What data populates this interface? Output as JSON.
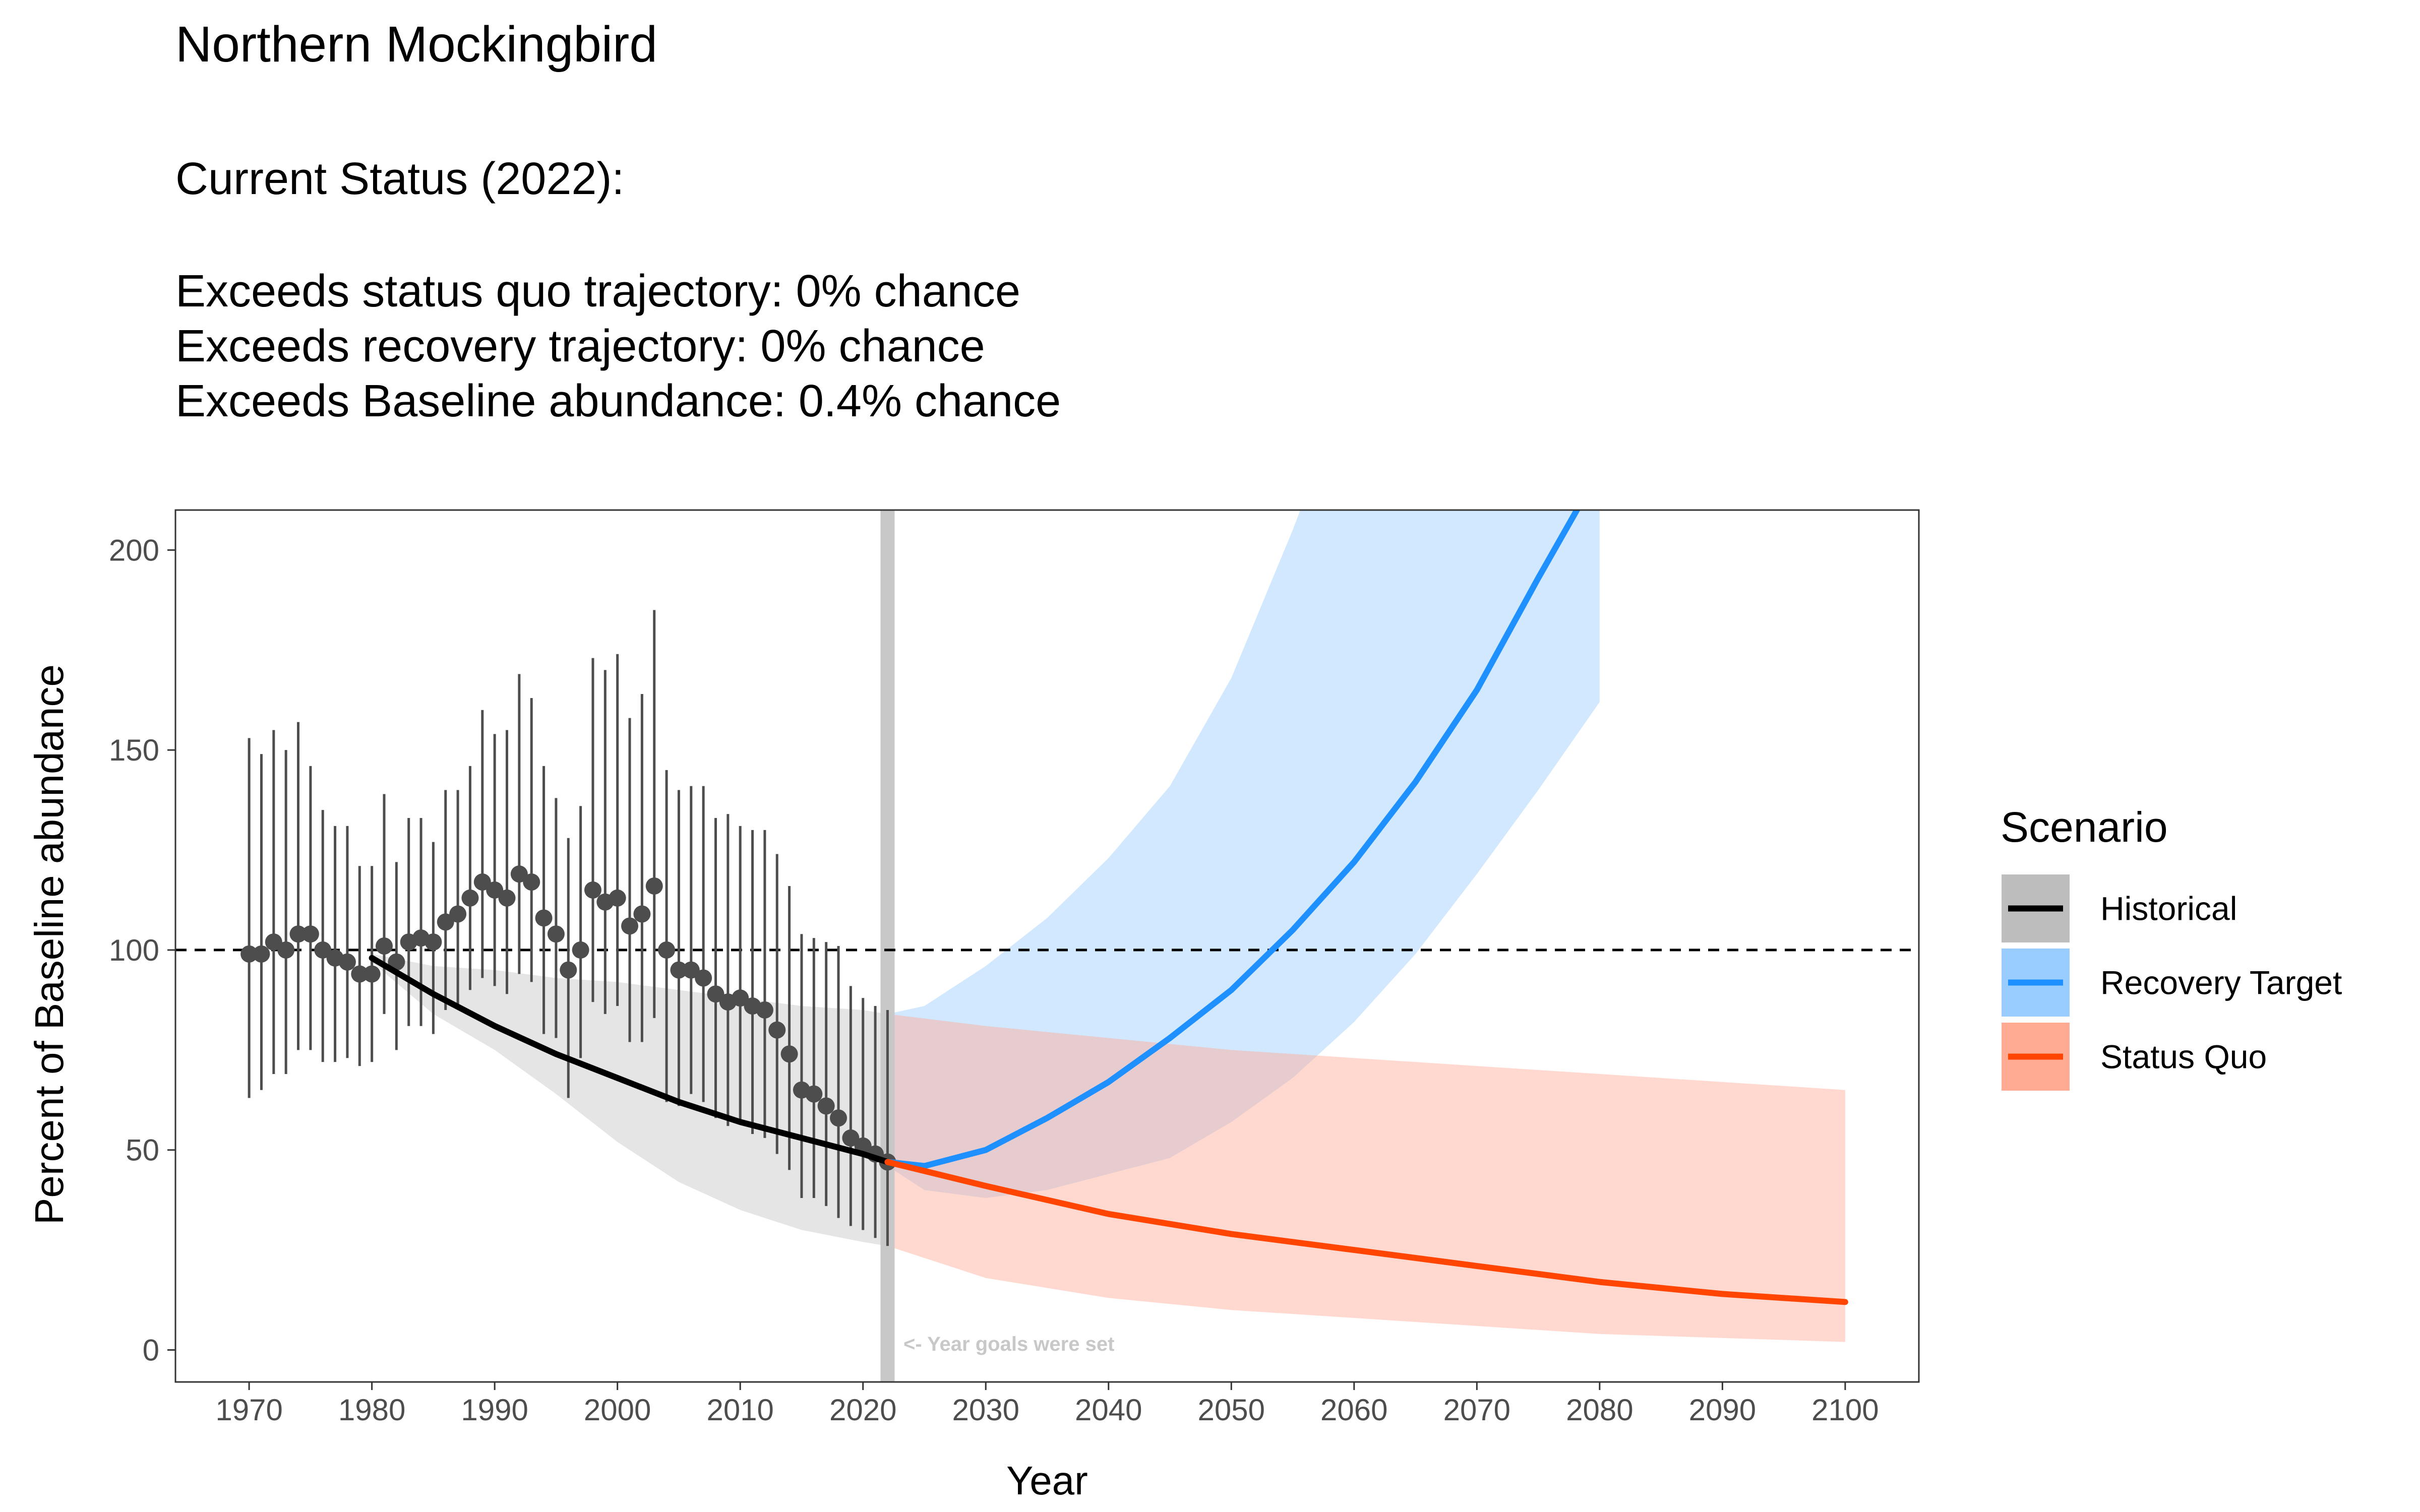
{
  "header": {
    "title": "Northern Mockingbird",
    "status_heading": "Current Status (2022):",
    "status_lines": [
      "Exceeds status quo trajectory: 0% chance",
      "Exceeds recovery trajectory: 0% chance",
      "Exceeds Baseline abundance: 0.4% chance"
    ]
  },
  "chart_data": {
    "type": "line",
    "xlabel": "Year",
    "ylabel": "Percent of Baseline abundance",
    "xlim": [
      1964,
      2106
    ],
    "ylim": [
      -8,
      210
    ],
    "x_ticks": [
      1970,
      1980,
      1990,
      2000,
      2010,
      2020,
      2030,
      2040,
      2050,
      2060,
      2070,
      2080,
      2090,
      2100
    ],
    "y_ticks": [
      0,
      50,
      100,
      150,
      200
    ],
    "grid": false,
    "reference_line": {
      "y": 100,
      "style": "dashed"
    },
    "goal_year_marker": {
      "x": 2022,
      "label": "<- Year goals were set"
    },
    "legend": {
      "title": "Scenario",
      "position": "right",
      "entries": [
        {
          "label": "Historical",
          "color": "#000000",
          "band_color": "#bdbdbd"
        },
        {
          "label": "Recovery Target",
          "color": "#1e90ff",
          "band_color": "#99ccff"
        },
        {
          "label": "Status Quo",
          "color": "#ff4500",
          "band_color": "#ffab94"
        }
      ]
    },
    "annual_indices": {
      "x": [
        1970,
        1971,
        1972,
        1973,
        1974,
        1975,
        1976,
        1977,
        1978,
        1979,
        1980,
        1981,
        1982,
        1983,
        1984,
        1985,
        1986,
        1987,
        1988,
        1989,
        1990,
        1991,
        1992,
        1993,
        1994,
        1995,
        1996,
        1997,
        1998,
        1999,
        2000,
        2001,
        2002,
        2003,
        2004,
        2005,
        2006,
        2007,
        2008,
        2009,
        2010,
        2011,
        2012,
        2013,
        2014,
        2015,
        2016,
        2017,
        2018,
        2019,
        2020,
        2021,
        2022
      ],
      "y": [
        99,
        99,
        102,
        100,
        104,
        104,
        100,
        98,
        97,
        94,
        94,
        101,
        97,
        102,
        103,
        102,
        107,
        109,
        113,
        117,
        115,
        113,
        119,
        117,
        108,
        104,
        95,
        100,
        115,
        112,
        113,
        106,
        109,
        116,
        100,
        95,
        95,
        93,
        89,
        87,
        88,
        86,
        85,
        80,
        74,
        65,
        64,
        61,
        58,
        53,
        51,
        49,
        47
      ],
      "lower": [
        63,
        65,
        69,
        69,
        75,
        75,
        72,
        72,
        73,
        71,
        72,
        84,
        75,
        81,
        81,
        79,
        85,
        86,
        90,
        93,
        91,
        89,
        94,
        92,
        79,
        78,
        63,
        73,
        87,
        84,
        86,
        77,
        77,
        83,
        62,
        61,
        64,
        62,
        58,
        56,
        57,
        54,
        53,
        49,
        45,
        38,
        38,
        36,
        33,
        31,
        30,
        28,
        26
      ],
      "upper": [
        153,
        149,
        155,
        150,
        157,
        146,
        135,
        131,
        131,
        121,
        121,
        139,
        122,
        133,
        133,
        127,
        140,
        140,
        146,
        160,
        154,
        155,
        169,
        163,
        146,
        138,
        128,
        136,
        173,
        170,
        174,
        158,
        164,
        185,
        145,
        140,
        141,
        141,
        133,
        134,
        131,
        130,
        130,
        124,
        116,
        104,
        103,
        102,
        101,
        91,
        88,
        86,
        85
      ]
    },
    "series": [
      {
        "name": "Historical",
        "x": [
          1980,
          1985,
          1990,
          1995,
          2000,
          2005,
          2010,
          2015,
          2020,
          2022
        ],
        "y": [
          98,
          89,
          81,
          74,
          68,
          62,
          57,
          53,
          49,
          47
        ],
        "lower": [
          97,
          84,
          75,
          64,
          52,
          42,
          35,
          30,
          27,
          26
        ],
        "upper": [
          99,
          96,
          95,
          93,
          92,
          90,
          88,
          86,
          85,
          84
        ]
      },
      {
        "name": "Recovery Target",
        "x": [
          2022,
          2025,
          2030,
          2035,
          2040,
          2045,
          2050,
          2055,
          2060,
          2065,
          2070,
          2075,
          2080
        ],
        "y": [
          47,
          46,
          50,
          58,
          67,
          78,
          90,
          105,
          122,
          142,
          165,
          193,
          220
        ],
        "lower": [
          46,
          40,
          38,
          40,
          44,
          48,
          57,
          68,
          82,
          99,
          119,
          140,
          162
        ],
        "upper": [
          84,
          86,
          96,
          108,
          123,
          141,
          168,
          205,
          245,
          290,
          340,
          390,
          440
        ]
      },
      {
        "name": "Status Quo",
        "x": [
          2022,
          2030,
          2040,
          2050,
          2060,
          2070,
          2080,
          2090,
          2100
        ],
        "y": [
          47,
          41,
          34,
          29,
          25,
          21,
          17,
          14,
          12
        ],
        "lower": [
          26,
          18,
          13,
          10,
          8,
          6,
          4,
          3,
          2
        ],
        "upper": [
          84,
          81,
          78,
          75,
          73,
          71,
          69,
          67,
          65
        ]
      }
    ]
  }
}
